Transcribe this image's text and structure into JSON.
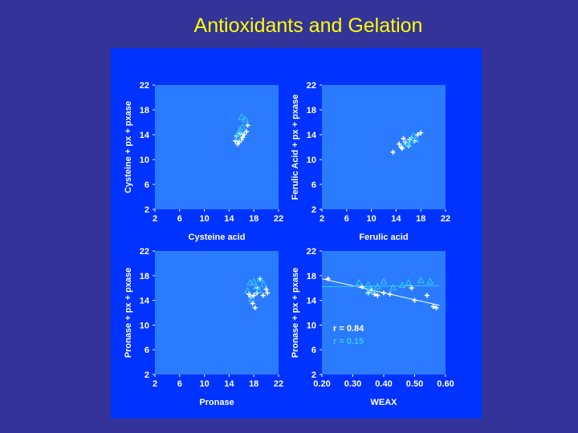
{
  "slide": {
    "title": "Antioxidants and Gelation",
    "background": "#333399",
    "title_color": "#ffff00",
    "panel_color": "#0033ff",
    "plot_color": "#2a7bff"
  },
  "chart_data": [
    {
      "type": "scatter",
      "xlabel": "Cysteine acid",
      "ylabel": "Cysteine + px + pxase",
      "xlim": [
        2,
        22
      ],
      "ylim": [
        2,
        22
      ],
      "xticks": [
        "2",
        "6",
        "10",
        "14",
        "18",
        "22"
      ],
      "yticks": [
        "2",
        "6",
        "10",
        "14",
        "18",
        "22"
      ],
      "series": [
        {
          "marker": "plus",
          "color": "#ffffff",
          "x": [
            15.0,
            15.2,
            15.6,
            16.0,
            16.4,
            16.8,
            17.0,
            15.4,
            16.2,
            15.8
          ],
          "y": [
            13.0,
            13.8,
            12.8,
            13.2,
            14.0,
            14.5,
            15.5,
            12.5,
            13.6,
            14.2
          ]
        },
        {
          "marker": "triangle",
          "color": "#33ccff",
          "x": [
            15.4,
            15.8,
            16.2,
            16.6,
            16.0,
            15.6
          ],
          "y": [
            13.5,
            14.8,
            15.2,
            16.4,
            16.8,
            14.2
          ]
        }
      ]
    },
    {
      "type": "scatter",
      "xlabel": "Ferulic acid",
      "ylabel": "Ferulic Acid + px + pxase",
      "xlim": [
        2,
        22
      ],
      "ylim": [
        2,
        22
      ],
      "xticks": [
        "2",
        "6",
        "10",
        "14",
        "18",
        "22"
      ],
      "yticks": [
        "2",
        "6",
        "10",
        "14",
        "18",
        "22"
      ],
      "series": [
        {
          "marker": "plus",
          "color": "#ffffff",
          "x": [
            13.5,
            14.5,
            15.0,
            15.5,
            16.0,
            16.5,
            17.0,
            17.5,
            18.0,
            14.8,
            16.2,
            15.2
          ],
          "y": [
            11.2,
            12.5,
            11.8,
            12.8,
            12.2,
            13.5,
            13.0,
            14.0,
            14.3,
            12.0,
            13.2,
            13.4
          ]
        },
        {
          "marker": "triangle",
          "color": "#33ccff",
          "x": [
            15.6,
            16.4,
            16.8,
            17.2,
            16.0
          ],
          "y": [
            12.6,
            13.0,
            13.8,
            13.2,
            12.4
          ]
        }
      ]
    },
    {
      "type": "scatter",
      "xlabel": "Pronase",
      "ylabel": "Pronase + px + pxase",
      "xlim": [
        2,
        22
      ],
      "ylim": [
        2,
        22
      ],
      "xticks": [
        "2",
        "6",
        "10",
        "14",
        "18",
        "22"
      ],
      "yticks": [
        "2",
        "6",
        "10",
        "14",
        "18",
        "22"
      ],
      "series": [
        {
          "marker": "plus",
          "color": "#ffffff",
          "x": [
            19.0,
            18.5,
            18.0,
            17.5,
            17.8,
            18.2,
            17.2,
            19.5,
            20.0,
            20.2,
            18.6
          ],
          "y": [
            17.5,
            15.2,
            14.8,
            14.6,
            13.5,
            12.8,
            15.0,
            14.8,
            15.8,
            15.2,
            16.0
          ]
        },
        {
          "marker": "triangle",
          "color": "#33ccff",
          "x": [
            17.0,
            17.4,
            18.0,
            18.4,
            19.0,
            18.8,
            17.6,
            19.6
          ],
          "y": [
            15.5,
            16.8,
            17.0,
            16.2,
            17.4,
            15.6,
            14.2,
            16.6
          ]
        }
      ]
    },
    {
      "type": "scatter",
      "xlabel": "WEAX",
      "ylabel": "Pronase + px + pxase",
      "xlim": [
        0.2,
        0.6
      ],
      "ylim": [
        2,
        22
      ],
      "xticks": [
        "0.20",
        "0.30",
        "0.40",
        "0.50",
        "0.60"
      ],
      "yticks": [
        "2",
        "6",
        "10",
        "14",
        "18",
        "22"
      ],
      "annotations": [
        {
          "text": "r = 0.84",
          "color": "#ffffff"
        },
        {
          "text": "r = 0.15",
          "color": "#33ccff"
        }
      ],
      "series": [
        {
          "marker": "plus",
          "color": "#ffffff",
          "x": [
            0.22,
            0.33,
            0.35,
            0.36,
            0.37,
            0.38,
            0.4,
            0.42,
            0.49,
            0.5,
            0.54,
            0.56,
            0.57
          ],
          "y": [
            17.5,
            16.2,
            15.2,
            15.6,
            15.0,
            14.8,
            15.2,
            15.0,
            16.0,
            14.0,
            14.8,
            13.0,
            12.8
          ]
        },
        {
          "marker": "triangle",
          "color": "#33ccff",
          "x": [
            0.32,
            0.35,
            0.36,
            0.38,
            0.4,
            0.43,
            0.46,
            0.48,
            0.52,
            0.55,
            0.35
          ],
          "y": [
            16.8,
            16.5,
            15.8,
            16.2,
            17.0,
            16.0,
            16.4,
            16.8,
            17.2,
            17.0,
            15.4
          ]
        }
      ],
      "trendlines": [
        {
          "color": "#ffffff",
          "x": [
            0.2,
            0.58
          ],
          "y": [
            17.5,
            13.2
          ]
        },
        {
          "color": "#33ccff",
          "x": [
            0.2,
            0.58
          ],
          "y": [
            16.2,
            16.4
          ]
        }
      ]
    }
  ]
}
